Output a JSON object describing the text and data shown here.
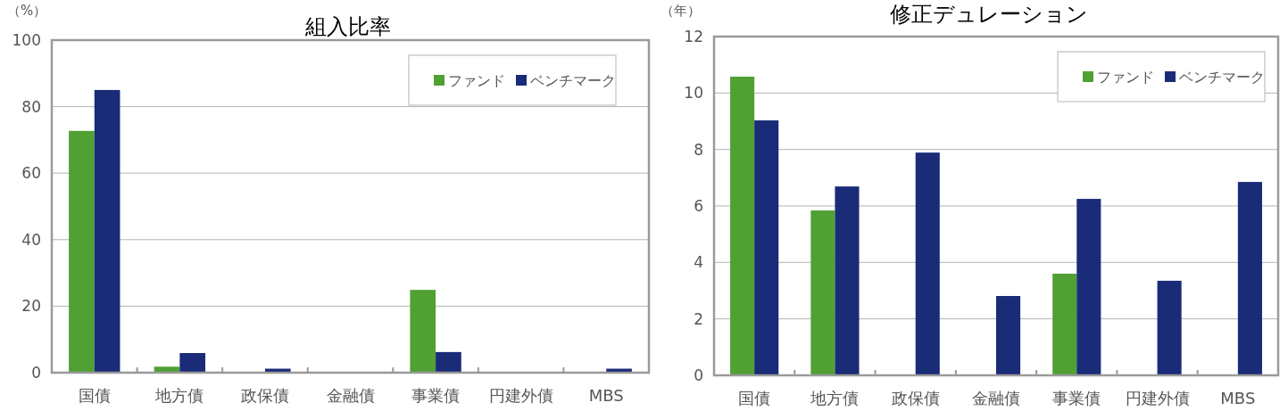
{
  "chart_data": [
    {
      "type": "bar",
      "title": "組入比率",
      "ylabel": "（%）",
      "categories": [
        "国債",
        "地方債",
        "政保債",
        "金融債",
        "事業債",
        "円建外債",
        "MBS"
      ],
      "series": [
        {
          "name": "ファンド",
          "color": "#50a033",
          "values": [
            72.7,
            1.8,
            null,
            null,
            24.9,
            null,
            null
          ]
        },
        {
          "name": "ベンチマーク",
          "color": "#1a2b78",
          "values": [
            85.0,
            5.9,
            1.2,
            null,
            6.2,
            null,
            1.2
          ]
        }
      ],
      "ylim": [
        0,
        100
      ],
      "yticks": [
        0,
        20,
        40,
        60,
        80,
        100
      ],
      "grid": "y",
      "legend": "top right"
    },
    {
      "type": "bar",
      "title": "修正デュレーション",
      "ylabel": "（年）",
      "categories": [
        "国債",
        "地方債",
        "政保債",
        "金融債",
        "事業債",
        "円建外債",
        "MBS"
      ],
      "series": [
        {
          "name": "ファンド",
          "color": "#50a033",
          "values": [
            10.58,
            5.84,
            null,
            null,
            3.6,
            null,
            null
          ]
        },
        {
          "name": "ベンチマーク",
          "color": "#1a2b78",
          "values": [
            9.03,
            6.69,
            7.89,
            2.81,
            6.25,
            3.35,
            6.85
          ]
        }
      ],
      "ylim": [
        0,
        12
      ],
      "yticks": [
        0,
        2,
        4,
        6,
        8,
        10,
        12
      ],
      "grid": "y",
      "legend": "top right"
    }
  ]
}
